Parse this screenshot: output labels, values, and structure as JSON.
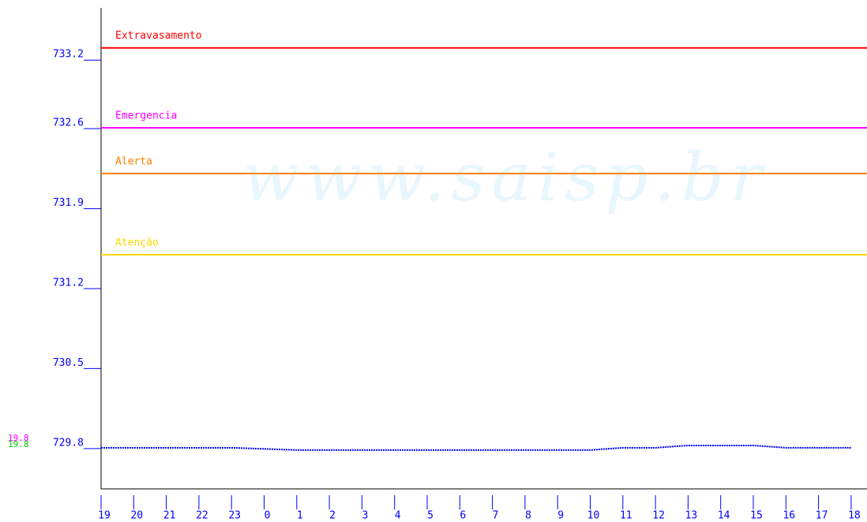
{
  "chart_data": {
    "type": "line",
    "watermark": "www.saisp.br",
    "categories": [
      "19",
      "20",
      "21",
      "22",
      "23",
      "0",
      "1",
      "2",
      "3",
      "4",
      "5",
      "6",
      "7",
      "8",
      "9",
      "10",
      "11",
      "12",
      "13",
      "14",
      "15",
      "16",
      "17",
      "18"
    ],
    "series": [
      {
        "color": "#0000ff",
        "values": [
          729.8,
          729.8,
          729.8,
          729.8,
          729.8,
          729.79,
          729.78,
          729.78,
          729.78,
          729.78,
          729.78,
          729.78,
          729.78,
          729.78,
          729.78,
          729.78,
          729.8,
          729.8,
          729.82,
          729.82,
          729.82,
          729.8,
          729.8,
          729.8
        ]
      }
    ],
    "thresholds": [
      {
        "label": "Extravasamento",
        "value": 733.3,
        "color": "#ff0000"
      },
      {
        "label": "Emergencia",
        "value": 732.6,
        "color": "#ff00ff"
      },
      {
        "label": "Alerta",
        "value": 732.2,
        "color": "#ff8000"
      },
      {
        "label": "Atenção",
        "value": 731.49,
        "color": "#ffd700"
      }
    ],
    "annotations": [
      {
        "text": "19.8",
        "color": "#ff00ff"
      },
      {
        "text": "19.8",
        "color": "#00cc00"
      }
    ],
    "ylim": [
      729.44,
      733.65
    ],
    "yticks": [
      729.8,
      730.5,
      731.2,
      731.9,
      732.6,
      733.2
    ],
    "axis_color": "#0000ff"
  }
}
